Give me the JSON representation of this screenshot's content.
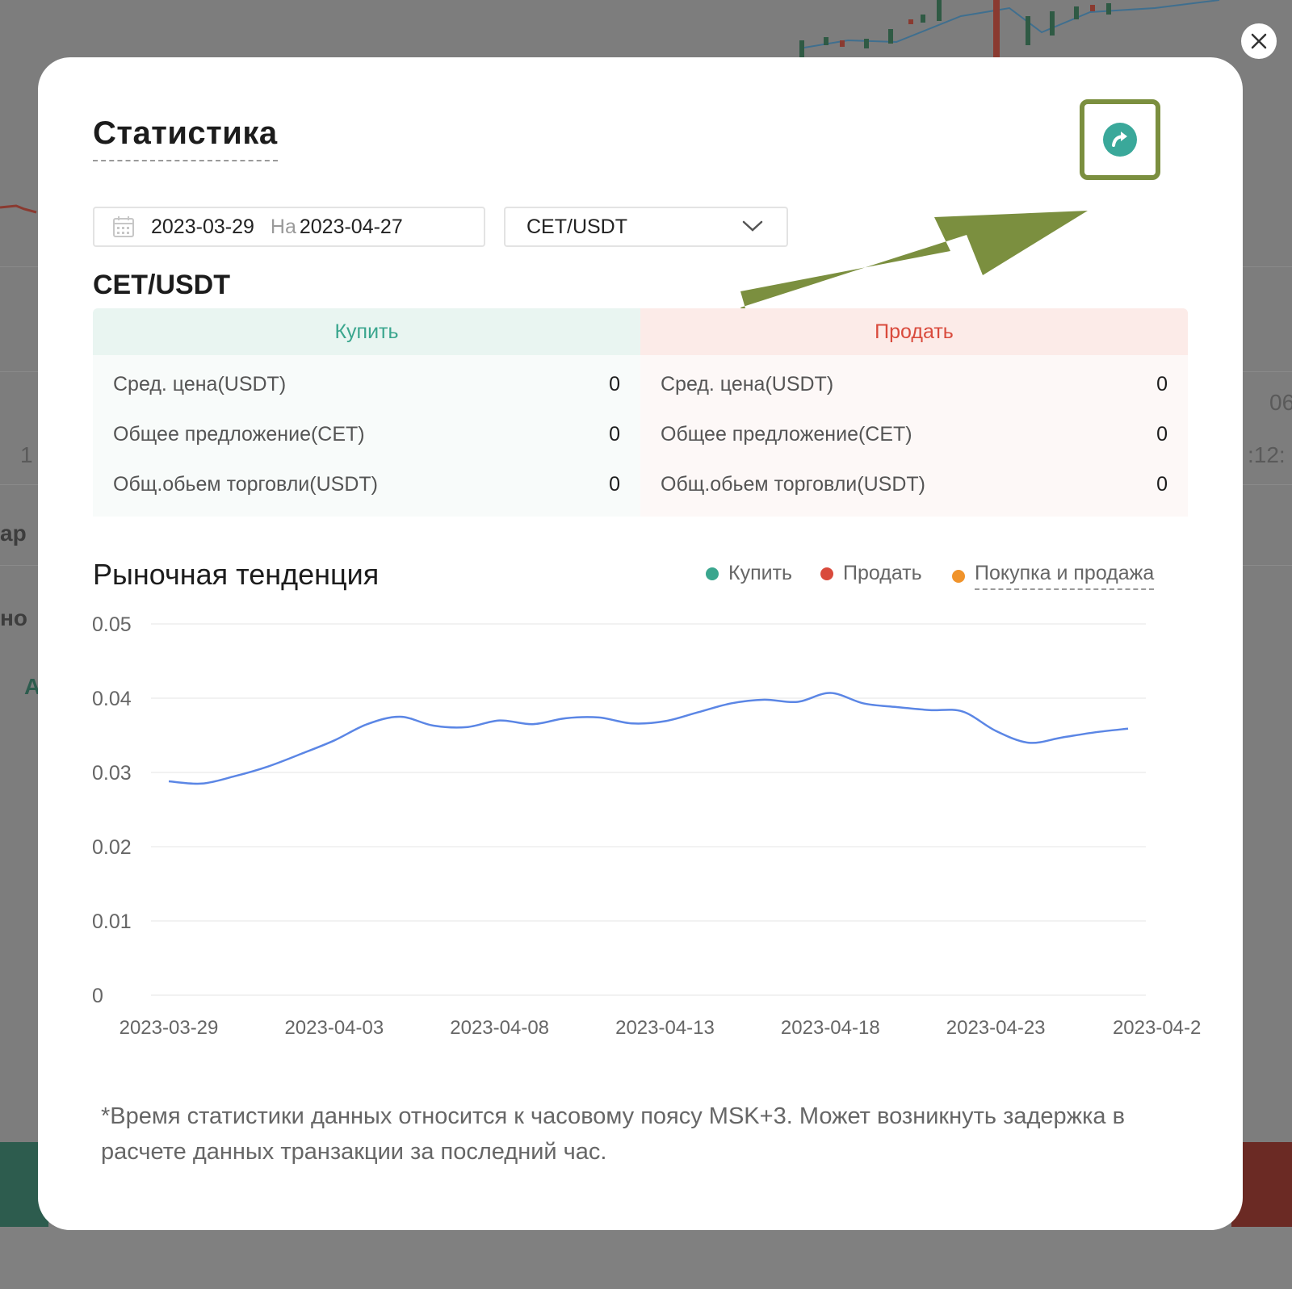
{
  "background": {
    "partial_labels": [
      "ар",
      "но",
      "А",
      "1",
      "06",
      ":12:"
    ]
  },
  "dialog": {
    "close_icon": "close-icon",
    "title": "Статистика",
    "share_icon": "share-arrow-icon",
    "annotation": {
      "type": "arrow",
      "color": "#7b8f3f",
      "points_to": "share-button"
    }
  },
  "filters": {
    "date_start": "2023-03-29",
    "date_separator": "На",
    "date_end": "2023-04-27",
    "pair": "CET/USDT",
    "calendar_icon": "calendar-icon",
    "dropdown_icon": "chevron-down-icon"
  },
  "summary": {
    "pair": "CET/USDT",
    "buy_tab": "Купить",
    "sell_tab": "Продать",
    "buy": [
      {
        "label": "Сред. цена(USDT)",
        "value": "0"
      },
      {
        "label": "Общее предложение(CET)",
        "value": "0"
      },
      {
        "label": "Общ.обьем торговли(USDT)",
        "value": "0"
      }
    ],
    "sell": [
      {
        "label": "Сред. цена(USDT)",
        "value": "0"
      },
      {
        "label": "Общее предложение(CET)",
        "value": "0"
      },
      {
        "label": "Общ.обьем торговли(USDT)",
        "value": "0"
      }
    ]
  },
  "trend": {
    "title": "Рыночная тенденция",
    "legend": [
      {
        "label": "Купить",
        "color": "#3aa68e"
      },
      {
        "label": "Продать",
        "color": "#d94a3c"
      },
      {
        "label": "Покупка и продажа",
        "color": "#f0932b"
      }
    ]
  },
  "chart_data": {
    "type": "line",
    "title": "",
    "xlabel": "",
    "ylabel": "",
    "ylim": [
      0,
      0.05
    ],
    "yticks": [
      "0.05",
      "0.04",
      "0.03",
      "0.02",
      "0.01",
      "0"
    ],
    "xticks": [
      "2023-03-29",
      "2023-04-03",
      "2023-04-08",
      "2023-04-13",
      "2023-04-18",
      "2023-04-23",
      "2023-04-2"
    ],
    "grid": true,
    "line_color": "#5b86e5",
    "x": [
      "2023-03-29",
      "2023-03-30",
      "2023-03-31",
      "2023-04-01",
      "2023-04-02",
      "2023-04-03",
      "2023-04-04",
      "2023-04-05",
      "2023-04-06",
      "2023-04-07",
      "2023-04-08",
      "2023-04-09",
      "2023-04-10",
      "2023-04-11",
      "2023-04-12",
      "2023-04-13",
      "2023-04-14",
      "2023-04-15",
      "2023-04-16",
      "2023-04-17",
      "2023-04-18",
      "2023-04-19",
      "2023-04-20",
      "2023-04-21",
      "2023-04-22",
      "2023-04-23",
      "2023-04-24",
      "2023-04-25",
      "2023-04-26",
      "2023-04-27"
    ],
    "series": [
      {
        "values": [
          0.0288,
          0.0285,
          0.0295,
          0.0308,
          0.0325,
          0.0343,
          0.0365,
          0.0375,
          0.0363,
          0.0361,
          0.037,
          0.0365,
          0.0373,
          0.0374,
          0.0366,
          0.0369,
          0.0381,
          0.0393,
          0.0398,
          0.0395,
          0.0407,
          0.0393,
          0.0388,
          0.0384,
          0.0382,
          0.0356,
          0.034,
          0.0347,
          0.0354,
          0.0359
        ]
      }
    ]
  },
  "footnote": "*Время статистики данных относится к часовому поясу MSK+3. Может возникнуть задержка в расчете данных транзакции за последний час."
}
